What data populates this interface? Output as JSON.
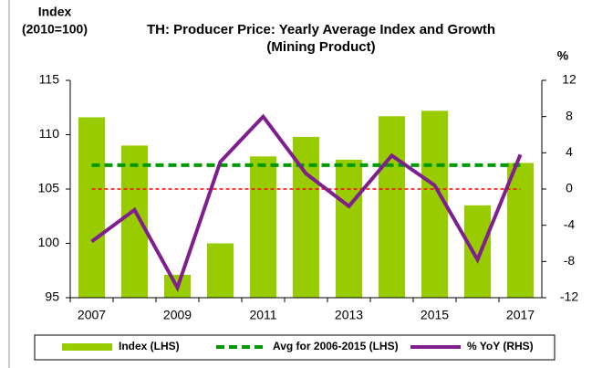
{
  "chart_data": {
    "type": "bar_line",
    "title": "TH: Producer Price: Yearly Average Index and Growth",
    "subtitle": "(Mining Product)",
    "ylabel": [
      "Index",
      "(2010=100)"
    ],
    "y2label": "%",
    "categories": [
      "2007",
      null,
      "2009",
      null,
      "2011",
      null,
      "2013",
      null,
      "2015",
      null,
      "2017"
    ],
    "series": [
      {
        "name": "Index (LHS)",
        "type": "bar",
        "color": "#99cc00",
        "axis": "y",
        "values": [
          111.6,
          109.0,
          97.1,
          100.0,
          108.0,
          109.8,
          107.7,
          111.7,
          112.2,
          103.5,
          107.4
        ]
      },
      {
        "name": "Avg for 2006-2015 (LHS)",
        "type": "dashed-line",
        "color": "#009900",
        "axis": "y",
        "values": [
          107.2,
          107.2,
          107.2,
          107.2,
          107.2,
          107.2,
          107.2,
          107.2,
          107.2,
          107.2,
          107.2
        ]
      },
      {
        "name": "% YoY (RHS)",
        "type": "line",
        "color": "#7f1f8f",
        "axis": "y2",
        "values": [
          -5.8,
          -2.3,
          -10.9,
          3.0,
          8.0,
          1.7,
          -1.9,
          3.7,
          0.4,
          -7.8,
          3.8
        ]
      }
    ],
    "reference_line": {
      "axis": "y2",
      "value": 0,
      "color": "#ff0000"
    },
    "ylim": [
      95,
      115
    ],
    "yticks": [
      95,
      100,
      105,
      110,
      115
    ],
    "y2lim": [
      -12,
      12
    ],
    "y2ticks": [
      -12,
      -8,
      -4,
      0,
      4,
      8,
      12
    ]
  }
}
